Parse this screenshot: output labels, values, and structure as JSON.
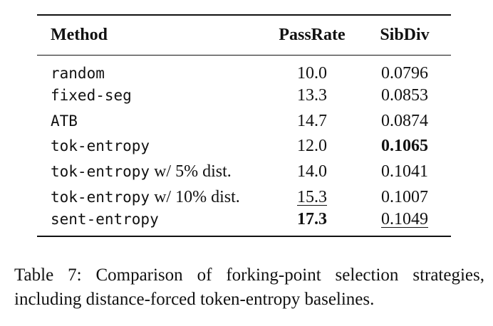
{
  "table": {
    "headers": {
      "method": "Method",
      "passrate": "PassRate",
      "sibdiv": "SibDiv"
    },
    "rows": [
      {
        "method_mono": "random",
        "method_suffix": "",
        "passrate": "10.0",
        "sibdiv": "0.0796"
      },
      {
        "method_mono": "fixed-seg",
        "method_suffix": "",
        "passrate": "13.3",
        "sibdiv": "0.0853"
      },
      {
        "method_mono": "ATB",
        "method_suffix": "",
        "passrate": "14.7",
        "sibdiv": "0.0874"
      },
      {
        "method_mono": "tok-entropy",
        "method_suffix": "",
        "passrate": "12.0",
        "sibdiv": "0.1065"
      },
      {
        "method_mono": "tok-entropy",
        "method_suffix": " w/ 5% dist.",
        "passrate": "14.0",
        "sibdiv": "0.1041"
      },
      {
        "method_mono": "tok-entropy",
        "method_suffix": " w/ 10% dist.",
        "passrate": "15.3",
        "sibdiv": "0.1007"
      },
      {
        "method_mono": "sent-entropy",
        "method_suffix": "",
        "passrate": "17.3",
        "sibdiv": "0.1049"
      }
    ]
  },
  "caption": "Table 7: Comparison of forking-point selection strategies, including distance-forced token-entropy baselines."
}
